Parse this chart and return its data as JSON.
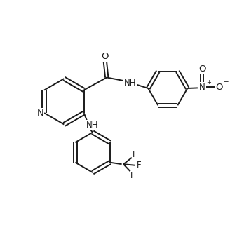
{
  "bg_color": "#ffffff",
  "line_color": "#1a1a1a",
  "line_width": 1.4,
  "font_size": 8.5,
  "figsize": [
    3.28,
    3.58
  ],
  "dpi": 100,
  "xlim": [
    0,
    10
  ],
  "ylim": [
    0,
    10.9
  ]
}
